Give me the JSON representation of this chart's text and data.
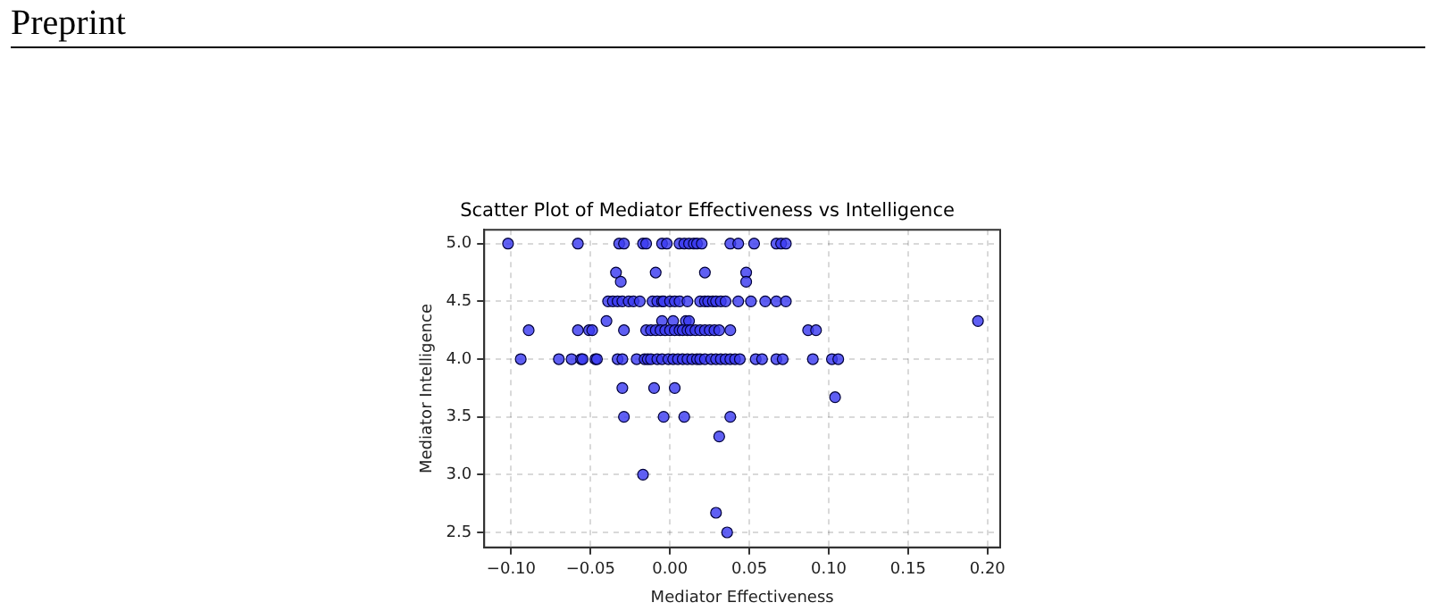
{
  "chart_data": {
    "type": "scatter",
    "title": "Scatter Plot of Mediator Effectiveness vs Intelligence",
    "xlabel": "Mediator Effectiveness",
    "ylabel": "Mediator Intelligence",
    "annotations": [
      "Preprint"
    ],
    "series": [
      {
        "color": "#3b3bf0",
        "x": [
          -0.102,
          -0.058,
          -0.032,
          -0.029,
          -0.017,
          -0.015,
          -0.005,
          -0.002,
          0.006,
          0.009,
          0.012,
          0.015,
          0.017,
          0.02,
          0.038,
          0.043,
          0.053,
          0.067,
          0.07,
          0.073,
          -0.034,
          -0.009,
          0.022,
          0.048,
          -0.031,
          0.048,
          -0.039,
          -0.036,
          -0.033,
          -0.03,
          -0.026,
          -0.023,
          -0.019,
          -0.011,
          -0.008,
          -0.005,
          -0.004,
          0.0,
          0.003,
          0.006,
          0.011,
          0.019,
          0.022,
          0.024,
          0.027,
          0.029,
          0.032,
          0.035,
          0.043,
          0.051,
          0.06,
          0.067,
          0.073,
          -0.04,
          -0.005,
          0.002,
          0.01,
          0.012,
          0.194,
          -0.089,
          -0.058,
          -0.051,
          -0.049,
          -0.029,
          -0.015,
          -0.012,
          -0.009,
          -0.006,
          -0.003,
          0.0,
          0.003,
          0.006,
          0.008,
          0.011,
          0.013,
          0.016,
          0.019,
          0.022,
          0.025,
          0.028,
          0.031,
          0.038,
          0.087,
          0.092,
          -0.094,
          -0.07,
          -0.062,
          -0.056,
          -0.055,
          -0.047,
          -0.046,
          -0.033,
          -0.03,
          -0.021,
          -0.016,
          -0.014,
          -0.012,
          -0.008,
          -0.005,
          -0.001,
          0.002,
          0.005,
          0.008,
          0.011,
          0.014,
          0.017,
          0.019,
          0.022,
          0.026,
          0.029,
          0.032,
          0.035,
          0.038,
          0.041,
          0.044,
          0.054,
          0.058,
          0.067,
          0.071,
          0.09,
          0.102,
          0.106,
          -0.03,
          -0.01,
          0.003,
          0.104,
          -0.029,
          -0.004,
          0.009,
          0.038,
          0.031,
          -0.017,
          0.029,
          0.036
        ],
        "values": [
          5,
          5,
          5,
          5,
          5,
          5,
          5,
          5,
          5,
          5,
          5,
          5,
          5,
          5,
          5,
          5,
          5,
          5,
          5,
          5,
          4.75,
          4.75,
          4.75,
          4.75,
          4.67,
          4.67,
          4.5,
          4.5,
          4.5,
          4.5,
          4.5,
          4.5,
          4.5,
          4.5,
          4.5,
          4.5,
          4.5,
          4.5,
          4.5,
          4.5,
          4.5,
          4.5,
          4.5,
          4.5,
          4.5,
          4.5,
          4.5,
          4.5,
          4.5,
          4.5,
          4.5,
          4.5,
          4.5,
          4.33,
          4.33,
          4.33,
          4.33,
          4.33,
          4.33,
          4.25,
          4.25,
          4.25,
          4.25,
          4.25,
          4.25,
          4.25,
          4.25,
          4.25,
          4.25,
          4.25,
          4.25,
          4.25,
          4.25,
          4.25,
          4.25,
          4.25,
          4.25,
          4.25,
          4.25,
          4.25,
          4.25,
          4.25,
          4.25,
          4.25,
          4,
          4,
          4,
          4,
          4,
          4,
          4,
          4,
          4,
          4,
          4,
          4,
          4,
          4,
          4,
          4,
          4,
          4,
          4,
          4,
          4,
          4,
          4,
          4,
          4,
          4,
          4,
          4,
          4,
          4,
          4,
          4,
          4,
          4,
          4,
          4,
          4,
          4,
          3.75,
          3.75,
          3.75,
          3.67,
          3.5,
          3.5,
          3.5,
          3.5,
          3.33,
          3,
          2.67,
          2.5
        ]
      }
    ],
    "xlim": [
      -0.117,
      0.208
    ],
    "xticks": [
      {
        "value": -0.1,
        "label": "−0.10"
      },
      {
        "value": -0.05,
        "label": "−0.05"
      },
      {
        "value": 0,
        "label": "0.00"
      },
      {
        "value": 0.05,
        "label": "0.05"
      },
      {
        "value": 0.1,
        "label": "0.10"
      },
      {
        "value": 0.15,
        "label": "0.15"
      },
      {
        "value": 0.2,
        "label": "0.20"
      }
    ],
    "ylim": [
      2.37,
      5.12
    ],
    "yticks": [
      {
        "value": 2.5,
        "label": "2.5"
      },
      {
        "value": 3,
        "label": "3.0"
      },
      {
        "value": 3.5,
        "label": "3.5"
      },
      {
        "value": 4,
        "label": "4.0"
      },
      {
        "value": 4.5,
        "label": "4.5"
      },
      {
        "value": 5,
        "label": "5.0"
      }
    ],
    "grid": true,
    "marker": "circle"
  }
}
